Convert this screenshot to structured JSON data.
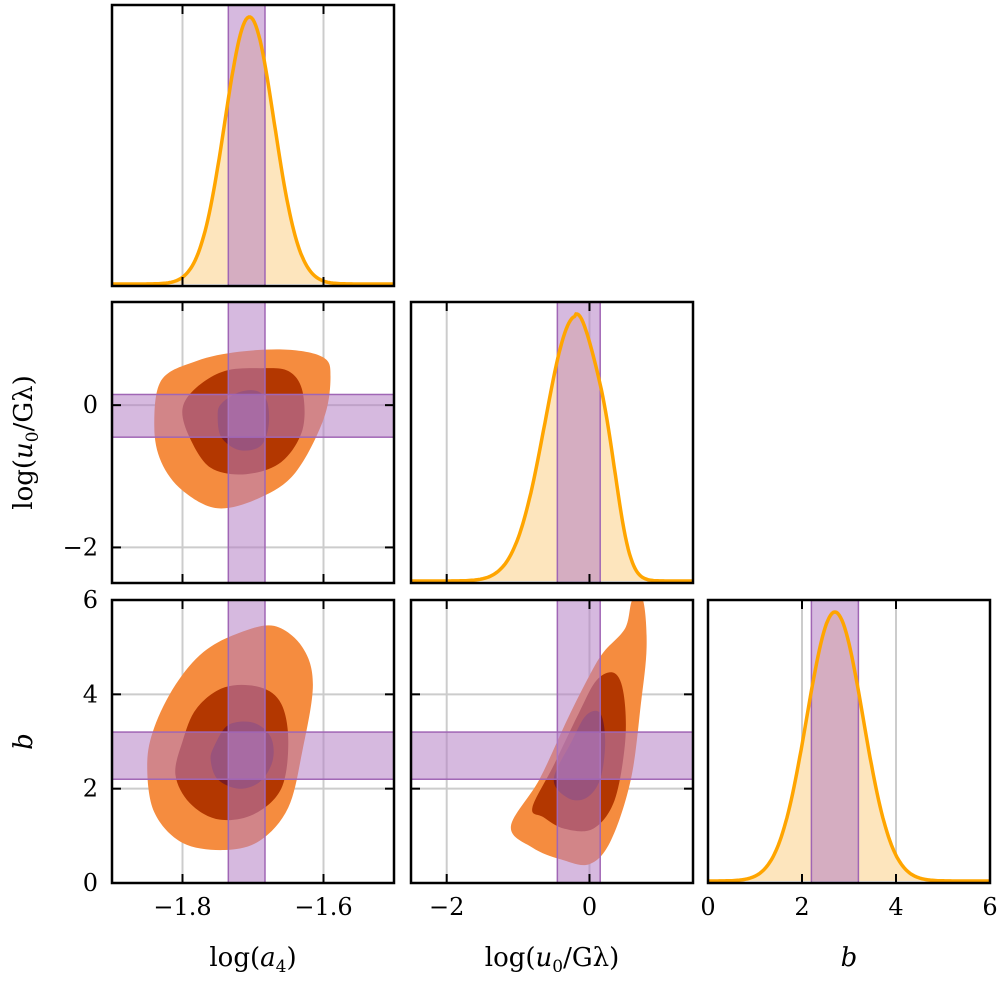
{
  "chart_data": {
    "type": "corner",
    "parameters": [
      {
        "name": "log_a4",
        "label": "log(a4)",
        "range": [
          -1.9,
          -1.5
        ],
        "ticks": [
          -1.8,
          -1.6
        ],
        "tick_labels": [
          "−1.8",
          "−1.6"
        ],
        "band": [
          -1.735,
          -1.683
        ]
      },
      {
        "name": "log_u0_over_Glambda",
        "label": "log(u0/Gλ)",
        "range": [
          -2.5,
          1.45
        ],
        "ticks": [
          -2,
          0
        ],
        "tick_labels": [
          "−2",
          "0"
        ],
        "band": [
          -0.45,
          0.15
        ]
      },
      {
        "name": "b",
        "label": "b",
        "range": [
          0,
          6
        ],
        "ticks": [
          0,
          2,
          4,
          6
        ],
        "tick_labels": [
          "0",
          "2",
          "4",
          "6"
        ],
        "band": [
          2.2,
          3.2
        ]
      }
    ],
    "grid_lines": {
      "log_a4": [
        -1.8,
        -1.6
      ],
      "log_u0_over_Glambda": [
        -2,
        0
      ],
      "b": [
        2,
        4
      ]
    },
    "axis_labels": {
      "x": [
        "log(a4)",
        "log(u0/Gλ)",
        "b"
      ],
      "y": [
        "log(u0/Gλ)",
        "b"
      ]
    },
    "marginals": [
      {
        "param": "log_a4",
        "type": "gaussian",
        "mean": -1.705,
        "sd": 0.035
      },
      {
        "param": "log_u0_over_Glambda",
        "type": "skewed",
        "mode": -0.2,
        "sd_left": 0.42,
        "sd_right": 0.3,
        "shoulder_at": 0.25
      },
      {
        "param": "b",
        "type": "gaussian",
        "mean": 2.7,
        "sd": 0.6
      }
    ],
    "contour_levels": [
      "outer",
      "middle",
      "inner"
    ],
    "contour_colors": [
      "#f58c3f",
      "#b33700",
      "#7a1d22"
    ],
    "band_color": "#b57fc4",
    "line_color": "#ffa500",
    "fill_color": "#fde5bd",
    "joint_panels": [
      {
        "x": "log_a4",
        "y": "log_u0_over_Glambda",
        "contours": [
          [
            [
              -1.83,
              0.35
            ],
            [
              -1.78,
              0.62
            ],
            [
              -1.72,
              0.75
            ],
            [
              -1.65,
              0.78
            ],
            [
              -1.6,
              0.67
            ],
            [
              -1.59,
              0.4
            ],
            [
              -1.6,
              -0.2
            ],
            [
              -1.64,
              -0.95
            ],
            [
              -1.69,
              -1.3
            ],
            [
              -1.75,
              -1.45
            ],
            [
              -1.8,
              -1.2
            ],
            [
              -1.83,
              -0.8
            ],
            [
              -1.84,
              -0.3
            ]
          ],
          [
            [
              -1.78,
              0.25
            ],
            [
              -1.74,
              0.48
            ],
            [
              -1.69,
              0.52
            ],
            [
              -1.65,
              0.48
            ],
            [
              -1.63,
              0.2
            ],
            [
              -1.63,
              -0.35
            ],
            [
              -1.66,
              -0.8
            ],
            [
              -1.71,
              -0.97
            ],
            [
              -1.76,
              -0.88
            ],
            [
              -1.79,
              -0.45
            ],
            [
              -1.8,
              -0.05
            ]
          ],
          [
            [
              -1.745,
              0.02
            ],
            [
              -1.72,
              0.18
            ],
            [
              -1.695,
              0.2
            ],
            [
              -1.68,
              0.05
            ],
            [
              -1.678,
              -0.3
            ],
            [
              -1.69,
              -0.58
            ],
            [
              -1.72,
              -0.63
            ],
            [
              -1.745,
              -0.45
            ],
            [
              -1.75,
              -0.15
            ]
          ]
        ]
      },
      {
        "x": "log_a4",
        "y": "b",
        "contours": [
          [
            [
              -1.84,
              3.3
            ],
            [
              -1.81,
              4.2
            ],
            [
              -1.77,
              4.9
            ],
            [
              -1.72,
              5.3
            ],
            [
              -1.67,
              5.45
            ],
            [
              -1.63,
              5.0
            ],
            [
              -1.615,
              4.2
            ],
            [
              -1.63,
              2.8
            ],
            [
              -1.65,
              1.6
            ],
            [
              -1.69,
              0.9
            ],
            [
              -1.74,
              0.7
            ],
            [
              -1.8,
              0.85
            ],
            [
              -1.84,
              1.5
            ],
            [
              -1.85,
              2.5
            ]
          ],
          [
            [
              -1.8,
              3.0
            ],
            [
              -1.78,
              3.7
            ],
            [
              -1.74,
              4.15
            ],
            [
              -1.69,
              4.15
            ],
            [
              -1.66,
              3.8
            ],
            [
              -1.65,
              3.0
            ],
            [
              -1.66,
              2.0
            ],
            [
              -1.7,
              1.45
            ],
            [
              -1.75,
              1.35
            ],
            [
              -1.79,
              1.7
            ],
            [
              -1.81,
              2.3
            ]
          ],
          [
            [
              -1.755,
              2.9
            ],
            [
              -1.735,
              3.35
            ],
            [
              -1.7,
              3.4
            ],
            [
              -1.675,
              3.1
            ],
            [
              -1.672,
              2.6
            ],
            [
              -1.69,
              2.15
            ],
            [
              -1.72,
              2.0
            ],
            [
              -1.75,
              2.2
            ],
            [
              -1.76,
              2.6
            ]
          ]
        ]
      },
      {
        "x": "log_u0_over_Glambda",
        "y": "b",
        "contours": [
          [
            [
              -1.1,
              1.2
            ],
            [
              -0.7,
              2.2
            ],
            [
              -0.3,
              3.5
            ],
            [
              0.0,
              4.4
            ],
            [
              0.2,
              4.9
            ],
            [
              0.5,
              5.4
            ],
            [
              0.6,
              6.0
            ],
            [
              0.75,
              6.0
            ],
            [
              0.8,
              5.0
            ],
            [
              0.72,
              3.8
            ],
            [
              0.58,
              2.2
            ],
            [
              0.3,
              0.9
            ],
            [
              0.0,
              0.4
            ],
            [
              -0.4,
              0.5
            ],
            [
              -0.8,
              0.75
            ]
          ],
          [
            [
              -0.8,
              1.6
            ],
            [
              -0.5,
              2.5
            ],
            [
              -0.15,
              3.6
            ],
            [
              0.1,
              4.3
            ],
            [
              0.35,
              4.45
            ],
            [
              0.48,
              4.0
            ],
            [
              0.5,
              3.0
            ],
            [
              0.35,
              1.75
            ],
            [
              0.05,
              1.15
            ],
            [
              -0.35,
              1.15
            ],
            [
              -0.65,
              1.4
            ]
          ],
          [
            [
              -0.5,
              2.2
            ],
            [
              -0.25,
              3.0
            ],
            [
              -0.05,
              3.55
            ],
            [
              0.15,
              3.6
            ],
            [
              0.22,
              3.0
            ],
            [
              0.15,
              2.2
            ],
            [
              -0.05,
              1.8
            ],
            [
              -0.3,
              1.8
            ]
          ]
        ]
      }
    ]
  }
}
